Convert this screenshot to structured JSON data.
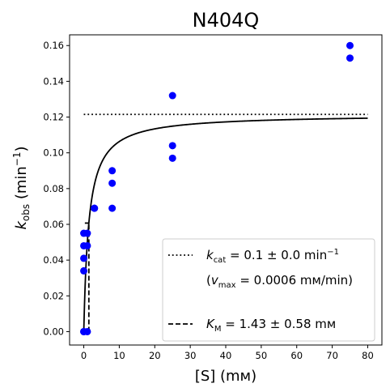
{
  "chart_data": {
    "type": "scatter",
    "title": "N404Q",
    "xlabel": "[S] (mм)",
    "ylabel": "k_obs (min⁻¹)",
    "xlim": [
      -4,
      84
    ],
    "ylim": [
      -0.0075,
      0.166
    ],
    "xticks": [
      0,
      10,
      20,
      30,
      40,
      50,
      60,
      70,
      80
    ],
    "yticks": [
      0.0,
      0.02,
      0.04,
      0.06,
      0.08,
      0.1,
      0.12,
      0.14,
      0.16
    ],
    "ytick_labels": [
      "0.00",
      "0.02",
      "0.04",
      "0.06",
      "0.08",
      "0.10",
      "0.12",
      "0.14",
      "0.16"
    ],
    "grid": false,
    "legend_position": "bottom-right",
    "colors": {
      "points": "#0000ff",
      "fit": "#000000"
    },
    "series": [
      {
        "kind": "points",
        "x": [
          0,
          0,
          0,
          0,
          0,
          0,
          1,
          1,
          1,
          3,
          3,
          8,
          8,
          8,
          25,
          25,
          25,
          75,
          75
        ],
        "y": [
          0.0,
          0.034,
          0.041,
          0.048,
          0.055,
          0.0,
          0.048,
          0.055,
          0.0,
          0.069,
          0.069,
          0.069,
          0.083,
          0.09,
          0.097,
          0.104,
          0.132,
          0.153,
          0.16
        ]
      },
      {
        "kind": "fit",
        "vmax": 0.1215,
        "km": 1.43,
        "x_range": [
          0,
          80
        ]
      },
      {
        "kind": "kcat-line",
        "y": 0.1215,
        "x_range": [
          0,
          80
        ]
      },
      {
        "kind": "km-line",
        "x": 1.43,
        "y_range": [
          0,
          0.0607
        ],
        "cap_x": [
          0.3,
          1.43
        ]
      }
    ],
    "legend": {
      "kcat_label": "k",
      "kcat_sub": "cat",
      "kcat_value": " = 0.1 ± 0.0 min",
      "kcat_exp": "−1",
      "vmax_open": "(",
      "vmax_v": "v",
      "vmax_sub": "max",
      "vmax_value": " = 0.0006 mм/min)",
      "km_label": "K",
      "km_sub": "M",
      "km_value": " = 1.43 ± 0.58 mм"
    }
  }
}
